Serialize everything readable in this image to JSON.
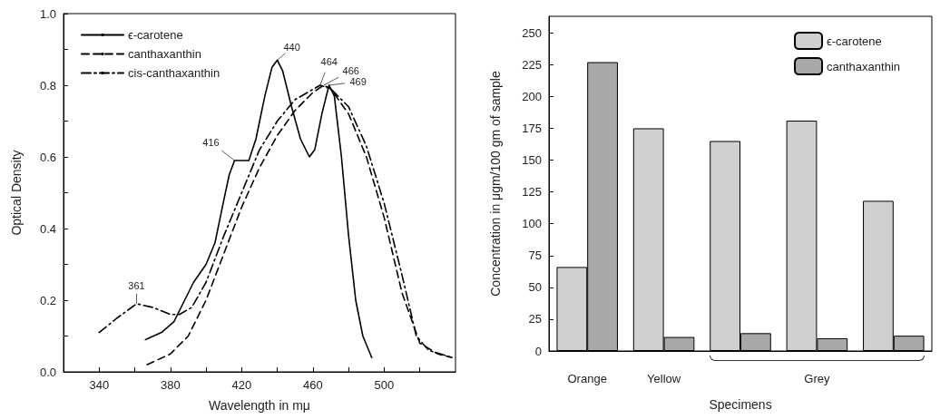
{
  "chart_data": [
    {
      "type": "line",
      "xlabel": "Wavelength in mμ",
      "ylabel": "Optical Density",
      "xlim": [
        320,
        540
      ],
      "xticks": [
        340,
        {
          "value": 360,
          "label": null
        },
        380,
        {
          "value": 400,
          "label": null
        },
        420,
        {
          "value": 440,
          "label": null
        },
        460,
        {
          "value": 480,
          "label": null
        },
        500,
        {
          "value": 520,
          "label": null
        }
      ],
      "ylim": [
        0,
        1
      ],
      "yticks": [
        {
          "value": 0,
          "label": "0.0"
        },
        {
          "value": 0.1,
          "label": null
        },
        0.2,
        {
          "value": 0.3,
          "label": null
        },
        0.4,
        {
          "value": 0.5,
          "label": null
        },
        0.6,
        {
          "value": 0.7,
          "label": null
        },
        0.8,
        {
          "value": 0.9,
          "label": null
        },
        {
          "value": 1,
          "label": "1.0"
        }
      ],
      "grid": false,
      "legend": "top left",
      "marker": "none",
      "series": [
        {
          "name": "ϵ-carotene",
          "color": "#000000",
          "line_style": "solid",
          "x": [
            366,
            375,
            382,
            388,
            393,
            400,
            405,
            410,
            413,
            416,
            420,
            424,
            428,
            433,
            437,
            440,
            443,
            448,
            453,
            458,
            461,
            465,
            469,
            472,
            476,
            480,
            484,
            488,
            493
          ],
          "values": [
            0.09,
            0.11,
            0.14,
            0.2,
            0.25,
            0.3,
            0.36,
            0.48,
            0.55,
            0.59,
            0.59,
            0.59,
            0.65,
            0.77,
            0.85,
            0.87,
            0.84,
            0.74,
            0.65,
            0.6,
            0.62,
            0.72,
            0.8,
            0.77,
            0.6,
            0.38,
            0.2,
            0.1,
            0.04
          ]
        },
        {
          "name": "canthaxanthin",
          "color": "#000000",
          "line_style": "dashed",
          "x": [
            367,
            380,
            390,
            400,
            410,
            420,
            430,
            440,
            450,
            460,
            466,
            470,
            480,
            490,
            500,
            510,
            520,
            530,
            538
          ],
          "values": [
            0.02,
            0.05,
            0.1,
            0.2,
            0.33,
            0.46,
            0.57,
            0.66,
            0.73,
            0.78,
            0.8,
            0.79,
            0.72,
            0.6,
            0.43,
            0.22,
            0.08,
            0.05,
            0.04
          ]
        },
        {
          "name": "cis-canthaxanthin",
          "color": "#000000",
          "line_style": "dotted",
          "x": [
            340,
            350,
            361,
            370,
            380,
            385,
            392,
            400,
            410,
            420,
            430,
            440,
            450,
            464,
            470,
            480,
            490,
            500,
            510,
            518,
            525,
            538
          ],
          "values": [
            0.11,
            0.15,
            0.19,
            0.18,
            0.16,
            0.16,
            0.18,
            0.25,
            0.38,
            0.5,
            0.62,
            0.7,
            0.76,
            0.8,
            0.79,
            0.74,
            0.63,
            0.47,
            0.27,
            0.1,
            0.06,
            0.04
          ]
        }
      ],
      "annotations": [
        {
          "text": "440",
          "x": 440,
          "y": 0.87
        },
        {
          "text": "416",
          "x": 416,
          "y": 0.59
        },
        {
          "text": "361",
          "x": 361,
          "y": 0.19
        },
        {
          "text": "464",
          "x": 464,
          "y": 0.8
        },
        {
          "text": "466",
          "x": 466,
          "y": 0.8
        },
        {
          "text": "469",
          "x": 469,
          "y": 0.8
        }
      ]
    },
    {
      "type": "bar",
      "xlabel": "Specimens",
      "ylabel": "Concentration in μgm/100 gm of sample",
      "categories": [
        "Orange",
        "Yellow",
        null,
        "Grey",
        null
      ],
      "ylim": [
        0,
        263
      ],
      "yticks": [
        0,
        25,
        50,
        75,
        100,
        125,
        150,
        175,
        200,
        225,
        250
      ],
      "grid": false,
      "legend": "top right",
      "series": [
        {
          "name": "ϵ-carotene",
          "color": "#d0d0d0",
          "values": [
            66,
            175,
            165,
            181,
            118
          ]
        },
        {
          "name": "canthaxanthin",
          "color": "#a8a8a8",
          "values": [
            227,
            11,
            14,
            10,
            12
          ]
        }
      ]
    }
  ]
}
